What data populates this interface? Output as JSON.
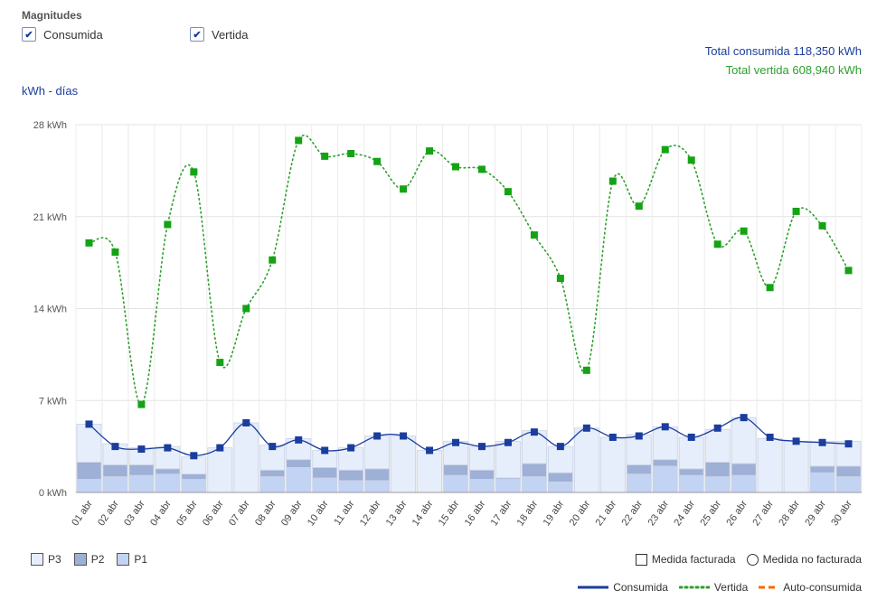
{
  "controls": {
    "title": "Magnitudes",
    "consumida_label": "Consumida",
    "vertida_label": "Vertida"
  },
  "totals": {
    "consumida_label": "Total consumida",
    "consumida_value": "118,350 kWh",
    "vertida_label": "Total vertida",
    "vertida_value": "608,940 kWh"
  },
  "unit_label": "kWh - días",
  "legend": {
    "periods": [
      {
        "label": "P3",
        "color": "#e6eefb"
      },
      {
        "label": "P2",
        "color": "#9fb0d6"
      },
      {
        "label": "P1",
        "color": "#c3d3f3"
      }
    ],
    "measures": [
      "Medida facturada",
      "Medida no facturada"
    ],
    "lines": [
      {
        "label": "Consumida",
        "color": "#1a3d9e"
      },
      {
        "label": "Vertida",
        "color": "#2ca02c"
      },
      {
        "label": "Auto-consumida",
        "color": "#ff6600"
      }
    ]
  },
  "chart_data": {
    "type": "bar",
    "ylim": [
      0,
      28
    ],
    "yticks": [
      "0 kWh",
      "7 kWh",
      "14 kWh",
      "21 kWh",
      "28 kWh"
    ],
    "ytick_values": [
      0,
      7,
      14,
      21,
      28
    ],
    "categories": [
      "01 abr",
      "02 abr",
      "03 abr",
      "04 abr",
      "05 abr",
      "06 abr",
      "07 abr",
      "08 abr",
      "09 abr",
      "10 abr",
      "11 abr",
      "12 abr",
      "13 abr",
      "14 abr",
      "15 abr",
      "16 abr",
      "17 abr",
      "18 abr",
      "19 abr",
      "20 abr",
      "21 abr",
      "22 abr",
      "23 abr",
      "24 abr",
      "25 abr",
      "26 abr",
      "27 abr",
      "28 abr",
      "29 abr",
      "30 abr"
    ],
    "series": [
      {
        "name": "P1",
        "kind": "bar",
        "values": [
          1.0,
          1.2,
          1.3,
          1.4,
          1.0,
          0,
          0,
          1.2,
          1.9,
          1.1,
          0.9,
          0.9,
          0,
          0,
          1.3,
          1.0,
          1.0,
          1.2,
          0.8,
          0,
          0,
          1.4,
          2.0,
          1.3,
          1.2,
          1.3,
          0,
          0,
          1.5,
          1.2
        ]
      },
      {
        "name": "P2",
        "kind": "bar",
        "values": [
          1.3,
          0.9,
          0.8,
          0.4,
          0.4,
          0,
          0,
          0.5,
          0.6,
          0.8,
          0.8,
          0.9,
          0,
          0,
          0.8,
          0.7,
          0.1,
          1.0,
          0.7,
          0,
          0,
          0.7,
          0.5,
          0.5,
          1.1,
          0.9,
          0,
          0,
          0.5,
          0.8
        ]
      },
      {
        "name": "P3",
        "kind": "bar",
        "values": [
          2.9,
          1.6,
          1.3,
          1.7,
          1.3,
          3.4,
          5.3,
          1.9,
          1.6,
          1.3,
          1.7,
          2.5,
          4.3,
          3.2,
          1.8,
          1.8,
          2.8,
          2.5,
          2.0,
          4.9,
          4.2,
          2.3,
          2.5,
          2.4,
          2.5,
          3.5,
          4.1,
          3.9,
          1.9,
          1.9
        ]
      },
      {
        "name": "Consumida",
        "kind": "line",
        "values": [
          5.2,
          3.5,
          3.3,
          3.4,
          2.8,
          3.4,
          5.3,
          3.5,
          4.0,
          3.2,
          3.4,
          4.3,
          4.3,
          3.2,
          3.8,
          3.5,
          3.8,
          4.6,
          3.5,
          4.9,
          4.2,
          4.3,
          5.0,
          4.2,
          4.9,
          5.7,
          4.2,
          3.9,
          3.8,
          3.7
        ]
      },
      {
        "name": "Vertida",
        "kind": "line",
        "values": [
          19.0,
          18.3,
          6.7,
          20.4,
          24.4,
          9.9,
          14.0,
          17.7,
          26.8,
          25.6,
          25.8,
          25.2,
          23.1,
          26.0,
          24.8,
          24.6,
          22.9,
          19.6,
          16.3,
          9.3,
          23.7,
          21.8,
          26.1,
          25.3,
          18.9,
          19.9,
          15.6,
          21.4,
          20.3,
          16.9
        ]
      }
    ]
  }
}
